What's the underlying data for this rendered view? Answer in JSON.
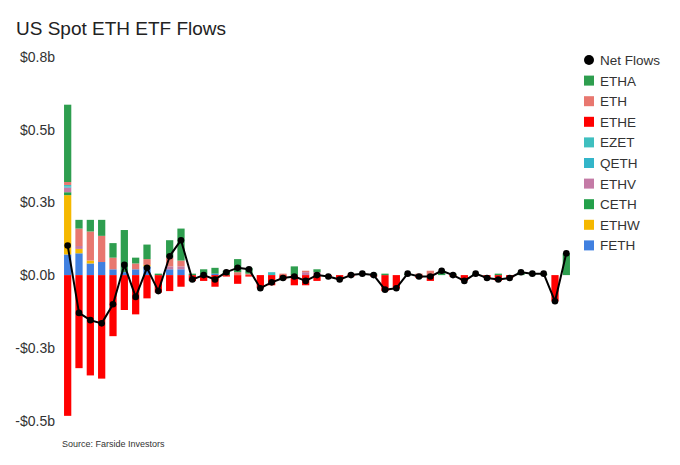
{
  "chart_data": {
    "type": "bar",
    "title": "US Spot ETH ETF Flows",
    "annotations": [
      "Source: Farside Investors"
    ],
    "stacked": true,
    "grid": false,
    "legend": "right",
    "categories": [
      null,
      null,
      null,
      null,
      null,
      null,
      null,
      null,
      null,
      null,
      null,
      null,
      null,
      null,
      null,
      null,
      null,
      null,
      null,
      null,
      null,
      null,
      null,
      null,
      null,
      null,
      null,
      null,
      null,
      null,
      null,
      null,
      null,
      null,
      null,
      null,
      null,
      null,
      null,
      null,
      null,
      null,
      null,
      null,
      null
    ],
    "ylim": [
      -0.5,
      0.75
    ],
    "yticks": [
      {
        "value": 0.75,
        "label": "$0.8b"
      },
      {
        "value": 0.5,
        "label": "$0.5b"
      },
      {
        "value": 0.25,
        "label": "$0.3b"
      },
      {
        "value": 0,
        "label": "$0.0b"
      },
      {
        "value": -0.25,
        "label": "-$0.3b"
      },
      {
        "value": -0.5,
        "label": "-$0.5b"
      }
    ],
    "series": [
      {
        "name": "Net Flows",
        "type": "line",
        "color": "#000000",
        "marker": "circle",
        "values": [
          0.102,
          -0.13,
          -0.155,
          -0.166,
          -0.1,
          0.035,
          -0.075,
          0.025,
          -0.055,
          0.065,
          0.12,
          -0.015,
          0,
          -0.015,
          0.01,
          0.025,
          0.02,
          -0.045,
          -0.025,
          -0.01,
          -0.005,
          -0.02,
          0,
          -0.005,
          -0.015,
          0,
          0.005,
          0,
          -0.05,
          -0.045,
          0.005,
          -0.005,
          -0.005,
          0.015,
          0,
          -0.02,
          0.005,
          -0.01,
          -0.015,
          -0.01,
          0.01,
          0.005,
          0.005,
          -0.09,
          0.075
        ]
      },
      {
        "name": "ETHA",
        "type": "bar",
        "color": "#2e9e4f",
        "values": [
          0.266,
          0.03,
          0.04,
          0.055,
          0.05,
          0.145,
          0.02,
          0.05,
          0.005,
          0.06,
          0.11,
          0.005,
          0.02,
          0.02,
          0.015,
          0.045,
          0.02,
          0,
          0,
          0,
          0.03,
          0,
          0.01,
          0,
          0,
          0,
          0.005,
          0.005,
          0.005,
          0,
          0.005,
          0,
          0,
          0.015,
          0.005,
          0,
          0.005,
          0,
          0.005,
          0,
          0.01,
          0.005,
          0.005,
          0,
          0.075
        ]
      },
      {
        "name": "ETH",
        "type": "bar",
        "color": "#e8776f",
        "values": [
          0.01,
          0.06,
          0.1,
          0.09,
          0.04,
          0,
          0.02,
          0.02,
          0,
          0.03,
          0.02,
          0,
          0,
          0,
          0,
          0.01,
          0.005,
          0,
          0,
          0.005,
          0,
          0.005,
          0,
          0,
          0,
          0.005,
          0,
          0,
          0,
          0,
          0,
          0.005,
          0.015,
          0,
          0,
          0,
          0,
          0,
          0,
          0,
          0,
          0,
          0,
          0,
          0
        ]
      },
      {
        "name": "ETHE",
        "type": "bar",
        "color": "#ff0000",
        "values": [
          -0.484,
          -0.32,
          -0.345,
          -0.356,
          -0.21,
          -0.12,
          -0.135,
          -0.08,
          -0.06,
          -0.055,
          -0.04,
          -0.02,
          -0.02,
          -0.04,
          -0.005,
          -0.03,
          -0.005,
          -0.045,
          -0.035,
          -0.015,
          -0.035,
          -0.035,
          -0.02,
          -0.005,
          -0.015,
          -0.005,
          0,
          -0.005,
          -0.055,
          -0.045,
          0,
          -0.01,
          -0.02,
          0,
          -0.005,
          -0.02,
          0,
          -0.01,
          -0.02,
          -0.01,
          0,
          0,
          0,
          -0.09,
          0
        ]
      },
      {
        "name": "EZET",
        "type": "bar",
        "color": "#3fbfbf",
        "values": [
          0.006,
          0,
          0,
          0,
          0,
          0,
          0,
          0,
          0,
          0,
          0,
          0,
          0,
          0,
          0,
          0,
          0,
          0,
          0.01,
          0,
          0,
          0,
          0,
          0,
          0,
          0,
          0,
          0,
          0,
          0,
          0,
          0,
          0,
          0,
          0,
          0,
          0,
          0,
          0,
          0,
          0,
          0,
          0,
          0,
          0
        ]
      },
      {
        "name": "QETH",
        "type": "bar",
        "color": "#33b5c9",
        "values": [
          0.003,
          0,
          0,
          0,
          0,
          0,
          0,
          0,
          0,
          0,
          0,
          0,
          0,
          0,
          0,
          0,
          0,
          0,
          0,
          0,
          0,
          0,
          0,
          0,
          0,
          0,
          0,
          0,
          0,
          0,
          0,
          0,
          0,
          0,
          0,
          0,
          0,
          0,
          0,
          0,
          0,
          0,
          0,
          0,
          0
        ]
      },
      {
        "name": "ETHV",
        "type": "bar",
        "color": "#c47aa6",
        "values": [
          0.016,
          0.01,
          0,
          0,
          0,
          0,
          0,
          0,
          0,
          0.01,
          0.01,
          0,
          0,
          0,
          0,
          0,
          0,
          0,
          0,
          0,
          0,
          0.01,
          0.01,
          0,
          0,
          0,
          0,
          0,
          0,
          0,
          0,
          0,
          0,
          0,
          0,
          0,
          0,
          0,
          0,
          0,
          0,
          0,
          0,
          0,
          0
        ]
      },
      {
        "name": "CETH",
        "type": "bar",
        "color": "#23a04a",
        "values": [
          0.01,
          0,
          0,
          0,
          0,
          0,
          0,
          0,
          0,
          0,
          0,
          0,
          0,
          0,
          0,
          0,
          0,
          0,
          0,
          0,
          0,
          0,
          0,
          0,
          0,
          0,
          0,
          0,
          0,
          0,
          0,
          0,
          0,
          0,
          0,
          0,
          0,
          0,
          0,
          0,
          0,
          0,
          0,
          0,
          0
        ]
      },
      {
        "name": "ETHW",
        "type": "bar",
        "color": "#f5b800",
        "values": [
          0.204,
          0.015,
          0.01,
          0,
          0,
          0,
          0,
          0.005,
          0,
          0,
          0,
          0,
          0,
          0,
          0,
          0,
          0,
          0,
          0,
          0,
          0,
          0,
          0,
          0,
          0,
          0,
          0,
          0,
          0,
          0,
          0,
          0,
          0,
          0,
          0,
          0,
          0,
          0,
          0,
          0,
          0,
          0,
          0,
          0,
          0
        ]
      },
      {
        "name": "FETH",
        "type": "bar",
        "color": "#4080e0",
        "values": [
          0.071,
          0.075,
          0.04,
          0.045,
          0.02,
          0.01,
          0.02,
          0.03,
          0,
          0.02,
          0.02,
          0,
          0,
          0.005,
          0,
          0,
          0,
          0,
          0,
          0,
          0,
          0,
          0,
          0,
          0,
          0,
          0,
          0,
          0,
          0,
          0,
          0,
          0,
          0,
          0,
          0,
          0,
          0,
          0,
          0,
          0,
          0,
          0,
          0,
          0
        ]
      }
    ]
  }
}
